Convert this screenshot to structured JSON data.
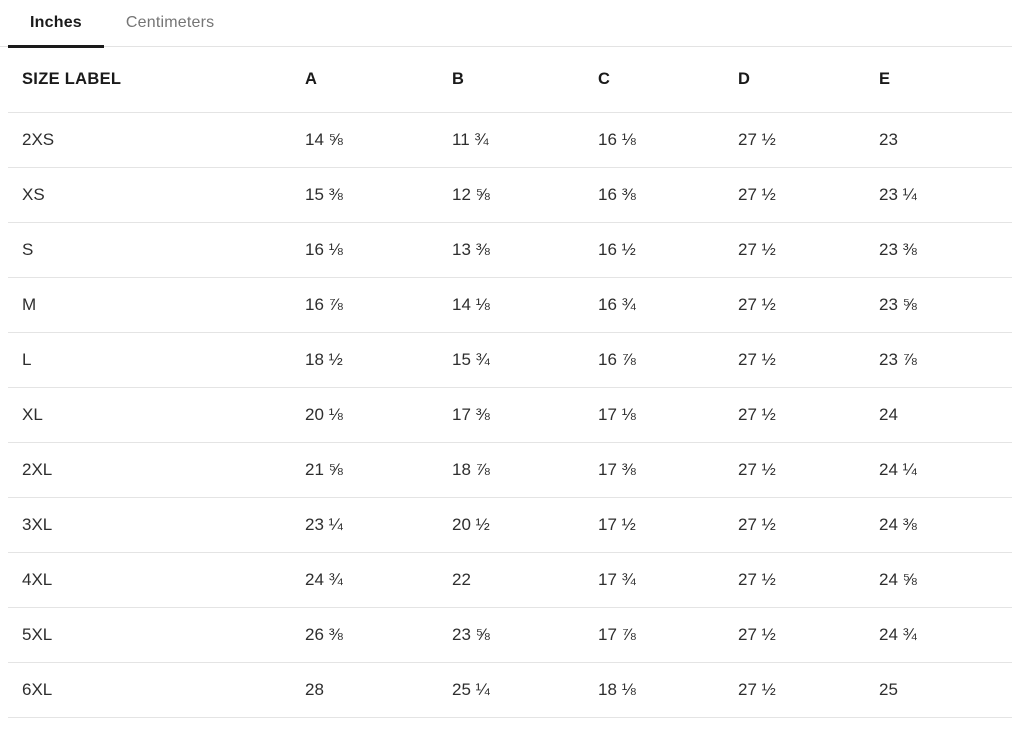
{
  "unit_tabs": [
    {
      "label": "Inches",
      "active": true
    },
    {
      "label": "Centimeters",
      "active": false
    }
  ],
  "table": {
    "columns": [
      "SIZE LABEL",
      "A",
      "B",
      "C",
      "D",
      "E"
    ],
    "rows": [
      {
        "size": "2XS",
        "values": [
          "14 ⅝",
          "11 ¾",
          "16 ⅛",
          "27 ½",
          "23"
        ]
      },
      {
        "size": "XS",
        "values": [
          "15 ⅜",
          "12 ⅝",
          "16 ⅜",
          "27 ½",
          "23 ¼"
        ]
      },
      {
        "size": "S",
        "values": [
          "16 ⅛",
          "13 ⅜",
          "16 ½",
          "27 ½",
          "23 ⅜"
        ]
      },
      {
        "size": "M",
        "values": [
          "16 ⅞",
          "14 ⅛",
          "16 ¾",
          "27 ½",
          "23 ⅝"
        ]
      },
      {
        "size": "L",
        "values": [
          "18 ½",
          "15 ¾",
          "16 ⅞",
          "27 ½",
          "23 ⅞"
        ]
      },
      {
        "size": "XL",
        "values": [
          "20 ⅛",
          "17 ⅜",
          "17 ⅛",
          "27 ½",
          "24"
        ]
      },
      {
        "size": "2XL",
        "values": [
          "21 ⅝",
          "18 ⅞",
          "17 ⅜",
          "27 ½",
          "24 ¼"
        ]
      },
      {
        "size": "3XL",
        "values": [
          "23 ¼",
          "20 ½",
          "17 ½",
          "27 ½",
          "24 ⅜"
        ]
      },
      {
        "size": "4XL",
        "values": [
          "24 ¾",
          "22",
          "17 ¾",
          "27 ½",
          "24 ⅝"
        ]
      },
      {
        "size": "5XL",
        "values": [
          "26 ⅜",
          "23 ⅝",
          "17 ⅞",
          "27 ½",
          "24 ¾"
        ]
      },
      {
        "size": "6XL",
        "values": [
          "28",
          "25 ¼",
          "18 ⅛",
          "27 ½",
          "25"
        ]
      }
    ]
  },
  "colors": {
    "active_tab_text": "#1a1a1a",
    "inactive_tab_text": "#757575",
    "active_tab_underline": "#1a1a1a",
    "row_divider": "#e4e4e4",
    "body_text": "#2e2e2e",
    "background": "#ffffff"
  }
}
